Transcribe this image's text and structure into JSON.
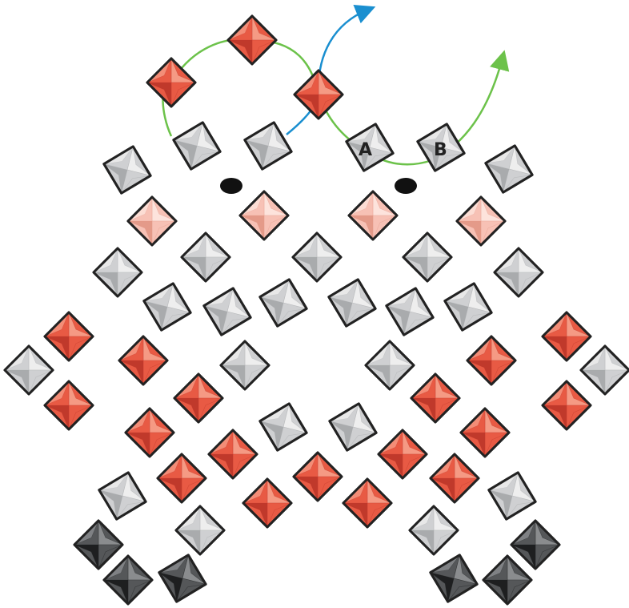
{
  "labels": {
    "a": "A",
    "b": "B"
  },
  "colors": {
    "red": {
      "base": "#e85a44",
      "light": "#f59a84",
      "dark": "#c0392b"
    },
    "pink": {
      "base": "#f7c1b5",
      "light": "#fde3dc",
      "dark": "#e49a89"
    },
    "gray": {
      "base": "#cfd0d2",
      "light": "#eeeeee",
      "dark": "#a9abad"
    },
    "black": {
      "base": "#555759",
      "light": "#8a8c8e",
      "dark": "#1e1f20"
    },
    "green_thread": "#6cc24a",
    "blue_thread": "#1a8fd0",
    "outline": "#222222"
  }
}
